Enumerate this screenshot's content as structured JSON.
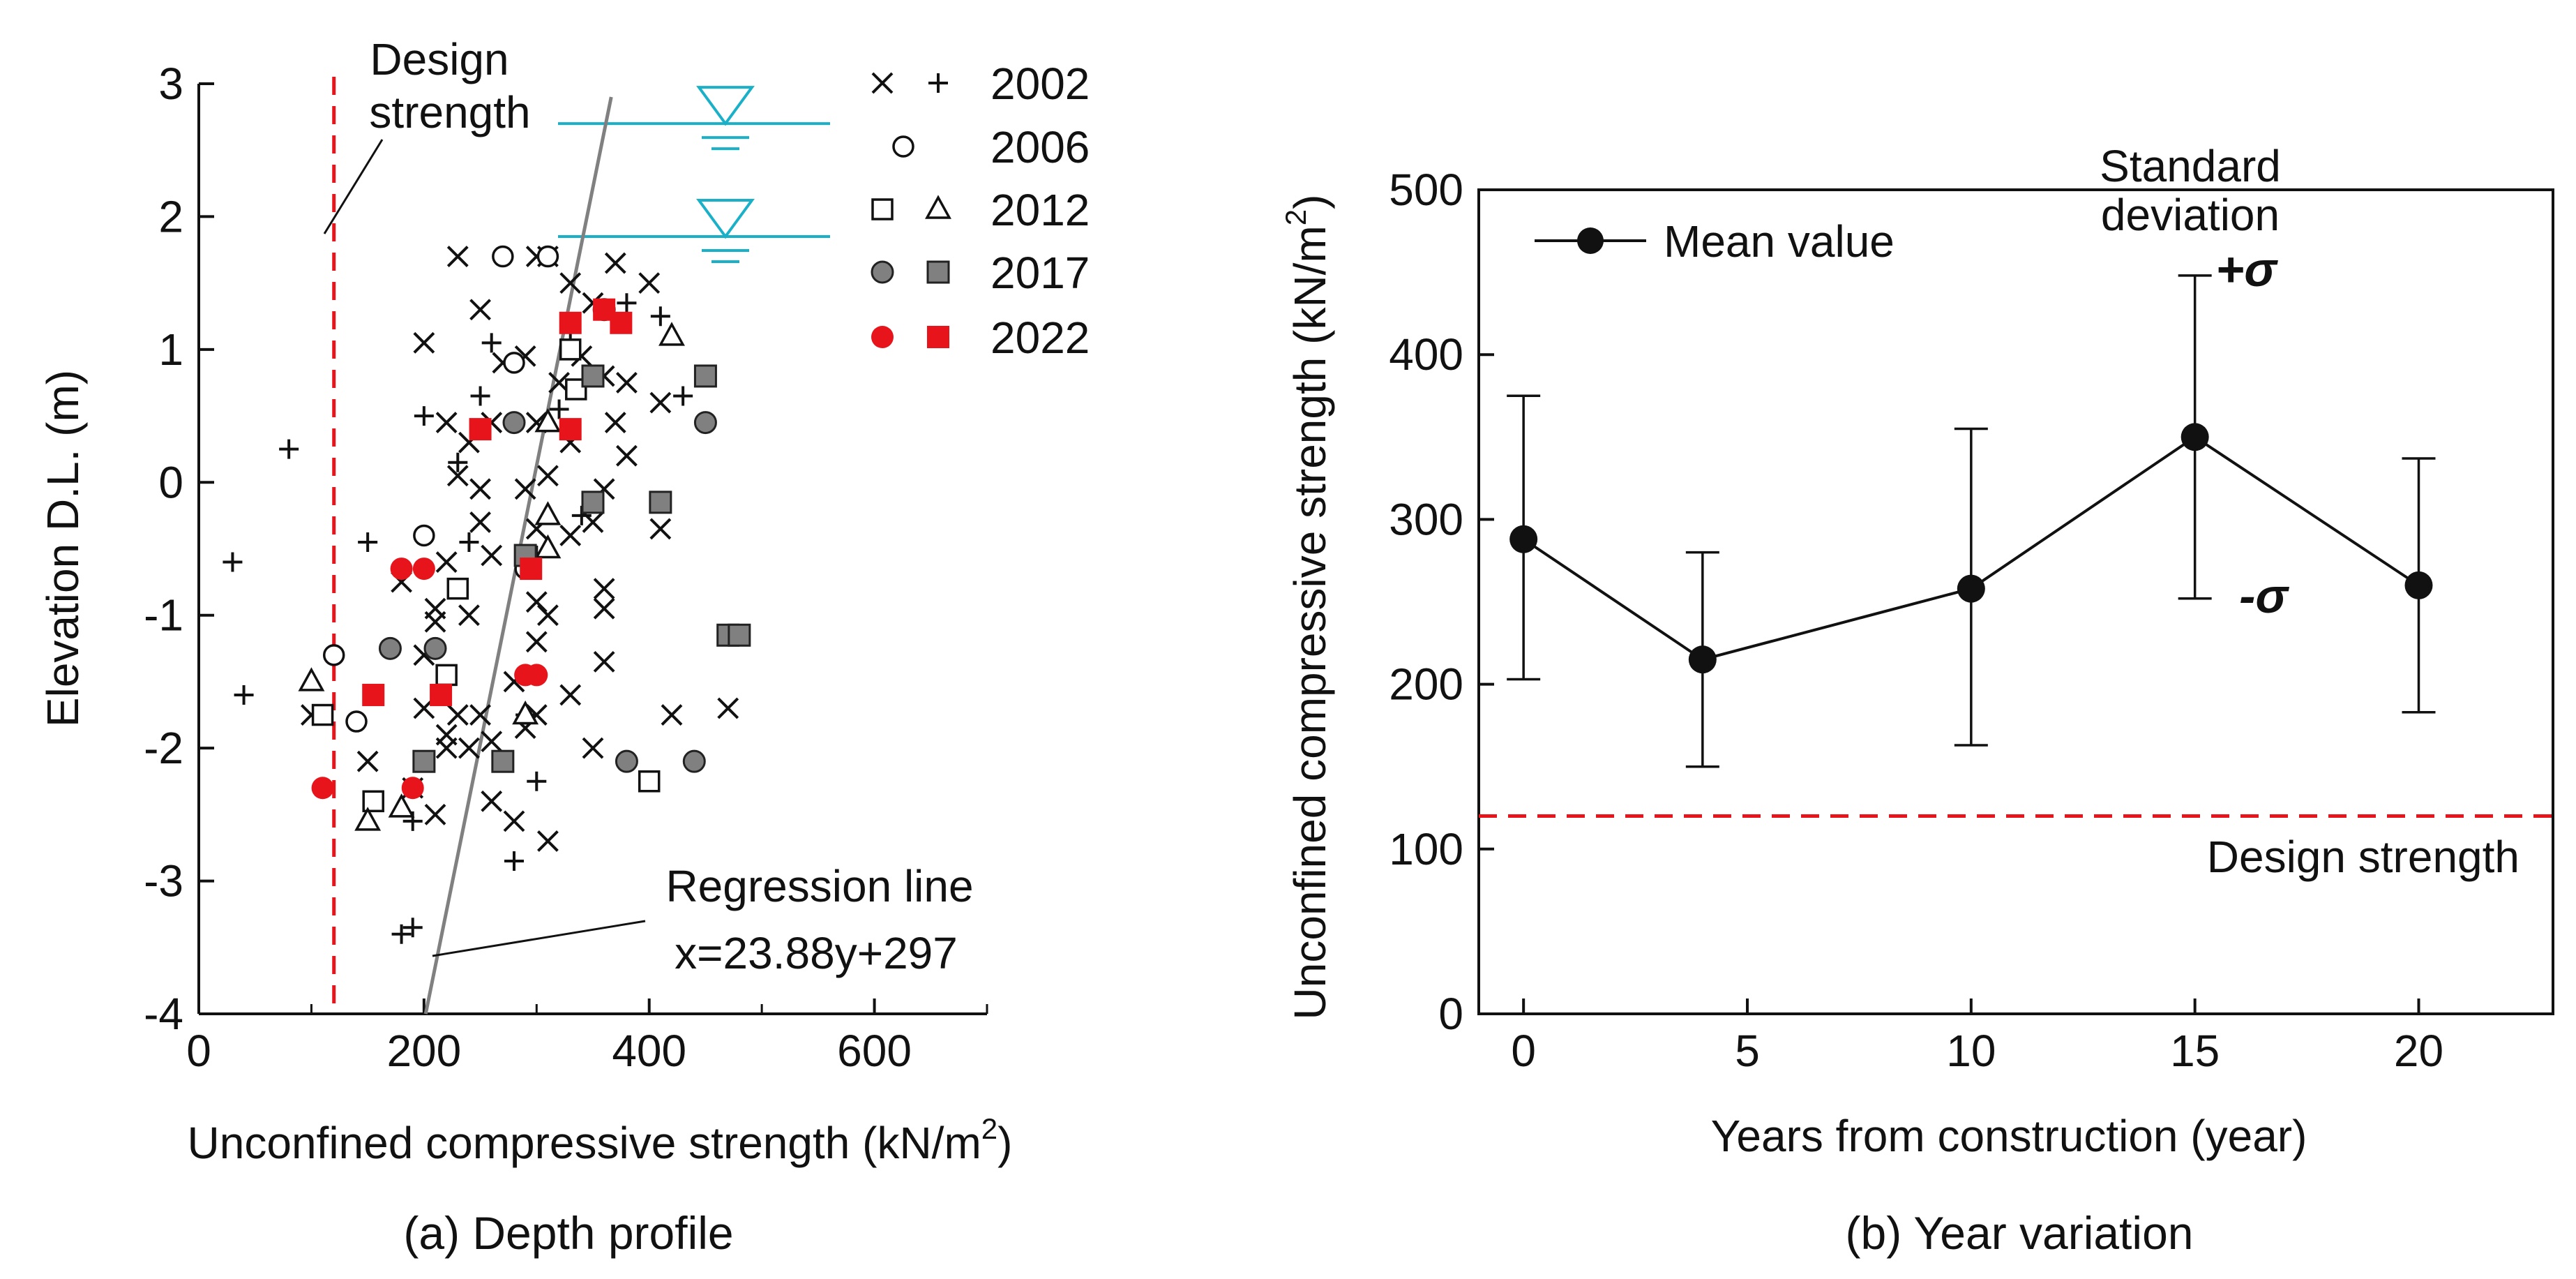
{
  "chart_data": [
    {
      "type": "scatter",
      "panel_caption": "(a) Depth profile",
      "xlabel": "Unconfined compressive strength (kN/m",
      "xlabel_sup": "2",
      "xlabel_end": ")",
      "ylabel": "Elevation D.L. (m)",
      "xlim": [
        0,
        700
      ],
      "ylim": [
        -4,
        3
      ],
      "x_ticks": [
        0,
        200,
        400,
        600
      ],
      "x_tick_labels": [
        "0",
        "200",
        "400",
        "600"
      ],
      "y_ticks": [
        -4,
        -3,
        -2,
        -1,
        0,
        1,
        2,
        3
      ],
      "y_tick_labels": [
        "-4",
        "-3",
        "-2",
        "-1",
        "0",
        "1",
        "2",
        "3"
      ],
      "legend": [
        {
          "label": "2002",
          "markers": [
            "x",
            "plus"
          ]
        },
        {
          "label": "2006",
          "markers": [
            "open-circle"
          ]
        },
        {
          "label": "2012",
          "markers": [
            "open-square",
            "open-triangle"
          ]
        },
        {
          "label": "2017",
          "markers": [
            "gray-circle",
            "gray-square"
          ]
        },
        {
          "label": "2022",
          "markers": [
            "red-circle",
            "red-square"
          ]
        }
      ],
      "series": [
        {
          "name": "2002 (x)",
          "marker": "x",
          "points": [
            [
              230,
              1.7
            ],
            [
              250,
              1.3
            ],
            [
              200,
              1.05
            ],
            [
              300,
              1.7
            ],
            [
              310,
              1.7
            ],
            [
              330,
              1.5
            ],
            [
              350,
              1.35
            ],
            [
              370,
              1.65
            ],
            [
              400,
              1.5
            ],
            [
              290,
              0.95
            ],
            [
              270,
              0.9
            ],
            [
              340,
              0.95
            ],
            [
              360,
              0.8
            ],
            [
              380,
              0.75
            ],
            [
              410,
              0.6
            ],
            [
              320,
              0.75
            ],
            [
              220,
              0.45
            ],
            [
              240,
              0.3
            ],
            [
              260,
              0.45
            ],
            [
              300,
              0.45
            ],
            [
              370,
              0.45
            ],
            [
              330,
              0.3
            ],
            [
              310,
              0.05
            ],
            [
              230,
              0.05
            ],
            [
              250,
              -0.05
            ],
            [
              290,
              -0.05
            ],
            [
              360,
              -0.05
            ],
            [
              380,
              0.2
            ],
            [
              350,
              -0.3
            ],
            [
              250,
              -0.3
            ],
            [
              300,
              -0.35
            ],
            [
              330,
              -0.4
            ],
            [
              410,
              -0.35
            ],
            [
              220,
              -0.6
            ],
            [
              260,
              -0.55
            ],
            [
              290,
              -0.55
            ],
            [
              180,
              -0.75
            ],
            [
              210,
              -0.95
            ],
            [
              240,
              -1.0
            ],
            [
              300,
              -0.9
            ],
            [
              310,
              -1.0
            ],
            [
              360,
              -0.8
            ],
            [
              360,
              -0.95
            ],
            [
              210,
              -1.05
            ],
            [
              200,
              -1.3
            ],
            [
              300,
              -1.2
            ],
            [
              360,
              -1.35
            ],
            [
              280,
              -1.5
            ],
            [
              330,
              -1.6
            ],
            [
              100,
              -1.75
            ],
            [
              200,
              -1.7
            ],
            [
              220,
              -1.9
            ],
            [
              230,
              -1.75
            ],
            [
              250,
              -1.75
            ],
            [
              290,
              -1.85
            ],
            [
              300,
              -1.75
            ],
            [
              420,
              -1.75
            ],
            [
              470,
              -1.7
            ],
            [
              220,
              -2.0
            ],
            [
              240,
              -2.0
            ],
            [
              260,
              -1.95
            ],
            [
              350,
              -2.0
            ],
            [
              150,
              -2.1
            ],
            [
              210,
              -2.5
            ],
            [
              260,
              -2.4
            ],
            [
              280,
              -2.55
            ],
            [
              310,
              -2.7
            ],
            [
              190,
              -2.3
            ]
          ]
        },
        {
          "name": "2002 (+)",
          "marker": "plus",
          "points": [
            [
              80,
              0.25
            ],
            [
              30,
              -0.6
            ],
            [
              40,
              -1.6
            ],
            [
              150,
              -0.45
            ],
            [
              200,
              0.5
            ],
            [
              250,
              0.65
            ],
            [
              260,
              1.05
            ],
            [
              230,
              0.15
            ],
            [
              320,
              0.55
            ],
            [
              330,
              1.05
            ],
            [
              360,
              1.3
            ],
            [
              340,
              -0.25
            ],
            [
              380,
              1.35
            ],
            [
              410,
              1.25
            ],
            [
              430,
              0.65
            ],
            [
              300,
              -0.55
            ],
            [
              240,
              -0.45
            ],
            [
              290,
              -1.75
            ],
            [
              300,
              -2.25
            ],
            [
              280,
              -2.85
            ],
            [
              190,
              -2.55
            ],
            [
              190,
              -3.35
            ],
            [
              180,
              -3.4
            ]
          ]
        },
        {
          "name": "2006",
          "marker": "open-circle",
          "points": [
            [
              270,
              1.7
            ],
            [
              310,
              1.7
            ],
            [
              280,
              0.9
            ],
            [
              200,
              -0.4
            ],
            [
              290,
              -0.65
            ],
            [
              120,
              -1.3
            ],
            [
              140,
              -1.8
            ]
          ]
        },
        {
          "name": "2012 (square)",
          "marker": "open-square",
          "points": [
            [
              330,
              1.0
            ],
            [
              335,
              0.7
            ],
            [
              230,
              -0.8
            ],
            [
              220,
              -1.45
            ],
            [
              110,
              -1.75
            ],
            [
              155,
              -2.4
            ],
            [
              400,
              -2.25
            ]
          ]
        },
        {
          "name": "2012 (triangle)",
          "marker": "open-triangle",
          "points": [
            [
              420,
              1.1
            ],
            [
              310,
              0.45
            ],
            [
              310,
              -0.25
            ],
            [
              310,
              -0.5
            ],
            [
              100,
              -1.5
            ],
            [
              150,
              -2.55
            ],
            [
              180,
              -2.45
            ],
            [
              290,
              -1.75
            ]
          ]
        },
        {
          "name": "2017 (circle)",
          "marker": "gray-circle",
          "points": [
            [
              360,
              1.3
            ],
            [
              450,
              0.45
            ],
            [
              280,
              0.45
            ],
            [
              170,
              -1.25
            ],
            [
              210,
              -1.25
            ],
            [
              380,
              -2.1
            ],
            [
              440,
              -2.1
            ]
          ]
        },
        {
          "name": "2017 (square)",
          "marker": "gray-square",
          "points": [
            [
              350,
              0.8
            ],
            [
              450,
              0.8
            ],
            [
              350,
              -0.15
            ],
            [
              410,
              -0.15
            ],
            [
              470,
              -1.15
            ],
            [
              480,
              -1.15
            ],
            [
              290,
              -0.55
            ],
            [
              200,
              -2.1
            ],
            [
              270,
              -2.1
            ]
          ]
        },
        {
          "name": "2022 (circle)",
          "marker": "red-circle",
          "points": [
            [
              110,
              -2.3
            ],
            [
              190,
              -2.3
            ],
            [
              180,
              -0.65
            ],
            [
              200,
              -0.65
            ],
            [
              290,
              -1.45
            ],
            [
              300,
              -1.45
            ]
          ]
        },
        {
          "name": "2022 (square)",
          "marker": "red-square",
          "points": [
            [
              330,
              1.2
            ],
            [
              360,
              1.3
            ],
            [
              375,
              1.2
            ],
            [
              250,
              0.4
            ],
            [
              330,
              0.4
            ],
            [
              295,
              -0.65
            ],
            [
              155,
              -1.6
            ],
            [
              215,
              -1.6
            ]
          ]
        }
      ],
      "design_strength": {
        "label_line1": "Design",
        "label_line2": "strength",
        "x": 120
      },
      "regression": {
        "label_line1": "Regression line",
        "label_line2": "x=23.88y+297",
        "slope": 23.88,
        "intercept": 297,
        "y_range": [
          -4,
          2.9
        ]
      },
      "water_levels": [
        2.7,
        1.85
      ]
    },
    {
      "type": "line",
      "panel_caption": "(b) Year variation",
      "xlabel": "Years from construction (year)",
      "ylabel": "Unconfined compressive strength (kN/m",
      "ylabel_sup": "2",
      "ylabel_end": ")",
      "xlim": [
        -1,
        23
      ],
      "ylim": [
        0,
        500
      ],
      "x_ticks": [
        0,
        5,
        10,
        15,
        20
      ],
      "x_tick_labels": [
        "0",
        "5",
        "10",
        "15",
        "20"
      ],
      "y_ticks": [
        0,
        100,
        200,
        300,
        400,
        500
      ],
      "y_tick_labels": [
        "0",
        "100",
        "200",
        "300",
        "400",
        "500"
      ],
      "series": [
        {
          "name": "Mean value",
          "x": [
            0,
            4,
            10,
            15,
            20
          ],
          "values": [
            288,
            215,
            258,
            350,
            260
          ],
          "error_upper": [
            375,
            280,
            355,
            448,
            337
          ],
          "error_lower": [
            203,
            150,
            163,
            252,
            183
          ]
        }
      ],
      "legend": [
        {
          "label": "Mean value"
        }
      ],
      "design_strength": {
        "label": "Design strength",
        "value": 120
      },
      "annotations": {
        "std_line1": "Standard",
        "std_line2": "deviation",
        "plus_sigma": "+σ",
        "minus_sigma": "-σ"
      }
    }
  ]
}
